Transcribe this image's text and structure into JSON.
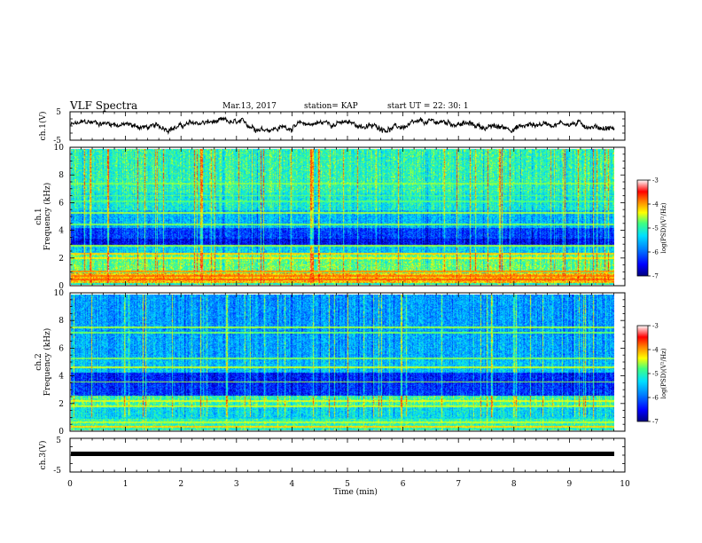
{
  "header": {
    "title": "VLF Spectra",
    "date": "Mar.13, 2017",
    "station": "station= KAP",
    "start_time": "start  UT =   22: 30: 1"
  },
  "chart_data": [
    {
      "type": "line",
      "name": "ch1-waveform",
      "ylabel": "ch.1(V)",
      "ylim": [
        -5,
        5
      ],
      "yticks": [
        "5",
        "-5"
      ],
      "xlim": [
        0,
        10
      ],
      "description_values": "noisy waveform between about -2 and +3 V"
    },
    {
      "type": "heatmap",
      "name": "ch1-spectrogram",
      "ylabel_1": "ch.1",
      "ylabel_2": "Frequency (kHz)",
      "ylim": [
        0,
        10
      ],
      "yticks": [
        "0",
        "2",
        "4",
        "6",
        "8",
        "10"
      ],
      "xlim": [
        0,
        10
      ],
      "colorbar": {
        "label": "log(PSD)(V²/Hz)",
        "ticks": [
          "-3",
          "-4",
          "-5",
          "-6",
          "-7"
        ],
        "range": [
          -7,
          -3
        ]
      }
    },
    {
      "type": "heatmap",
      "name": "ch2-spectrogram",
      "ylabel_1": "ch.2",
      "ylabel_2": "Frequency (kHz)",
      "ylim": [
        0,
        10
      ],
      "yticks": [
        "0",
        "2",
        "4",
        "6",
        "8",
        "10"
      ],
      "xlim": [
        0,
        10
      ],
      "colorbar": {
        "label": "log(PSD)(V²/Hz)",
        "ticks": [
          "-3",
          "-4",
          "-5",
          "-6",
          "-7"
        ],
        "range": [
          -7,
          -3
        ]
      }
    },
    {
      "type": "line",
      "name": "ch3-waveform",
      "ylabel": "ch.3(V)",
      "ylim": [
        -5,
        5
      ],
      "yticks": [
        "5",
        "-5"
      ],
      "xlim": [
        0,
        10
      ],
      "constant_value": 0
    }
  ],
  "xaxis": {
    "label": "Time  (min)",
    "ticks": [
      "0",
      "1",
      "2",
      "3",
      "4",
      "5",
      "6",
      "7",
      "8",
      "9",
      "10"
    ]
  },
  "colors": {
    "low": "#00007f",
    "mid_low": "#0050ff",
    "mid": "#00e0ff",
    "mid_high": "#40ff40",
    "high": "#ffff00",
    "top": "#ff2000",
    "max": "#ffffff"
  }
}
